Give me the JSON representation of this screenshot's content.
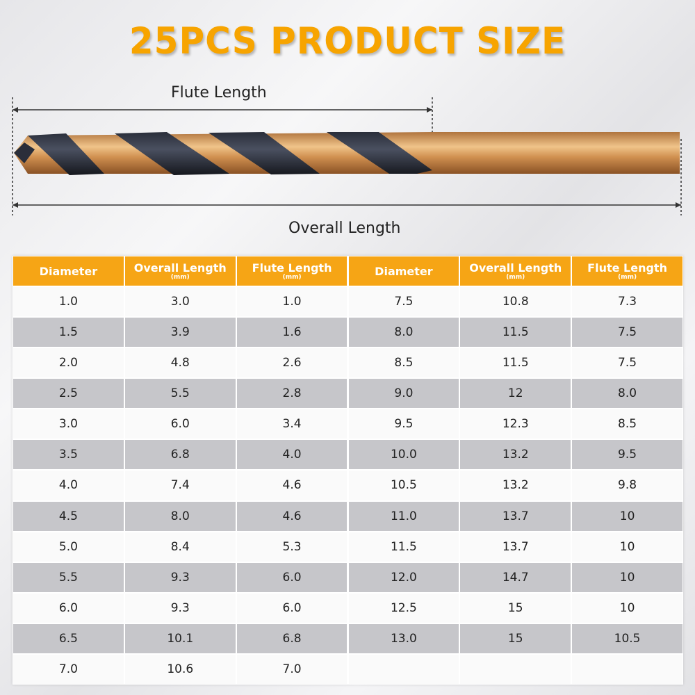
{
  "header": {
    "title": "25PCS PRODUCT SIZE"
  },
  "drill": {
    "flute_label": "Flute Length",
    "overall_label": "Overall Length"
  },
  "table": {
    "headers": [
      {
        "label": "Diameter"
      },
      {
        "label": "Overall Length",
        "unit": "(mm)"
      },
      {
        "label": "Flute Length",
        "unit": "(mm)"
      },
      {
        "label": "Diameter"
      },
      {
        "label": "Overall Length",
        "unit": "(mm)"
      },
      {
        "label": "Flute Length",
        "unit": "(mm)"
      }
    ],
    "rows": [
      [
        "1.0",
        "3.0",
        "1.0",
        "7.5",
        "10.8",
        "7.3"
      ],
      [
        "1.5",
        "3.9",
        "1.6",
        "8.0",
        "11.5",
        "7.5"
      ],
      [
        "2.0",
        "4.8",
        "2.6",
        "8.5",
        "11.5",
        "7.5"
      ],
      [
        "2.5",
        "5.5",
        "2.8",
        "9.0",
        "12",
        "8.0"
      ],
      [
        "3.0",
        "6.0",
        "3.4",
        "9.5",
        "12.3",
        "8.5"
      ],
      [
        "3.5",
        "6.8",
        "4.0",
        "10.0",
        "13.2",
        "9.5"
      ],
      [
        "4.0",
        "7.4",
        "4.6",
        "10.5",
        "13.2",
        "9.8"
      ],
      [
        "4.5",
        "8.0",
        "4.6",
        "11.0",
        "13.7",
        "10"
      ],
      [
        "5.0",
        "8.4",
        "5.3",
        "11.5",
        "13.7",
        "10"
      ],
      [
        "5.5",
        "9.3",
        "6.0",
        "12.0",
        "14.7",
        "10"
      ],
      [
        "6.0",
        "9.3",
        "6.0",
        "12.5",
        "15",
        "10"
      ],
      [
        "6.5",
        "10.1",
        "6.8",
        "13.0",
        "15",
        "10.5"
      ],
      [
        "7.0",
        "10.6",
        "7.0"
      ]
    ]
  }
}
